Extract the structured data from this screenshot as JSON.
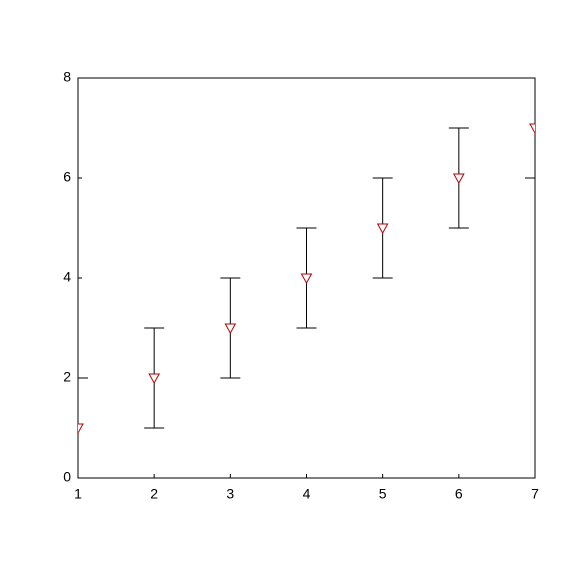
{
  "chart_data": {
    "type": "scatter",
    "x": [
      1,
      2,
      3,
      4,
      5,
      6,
      7
    ],
    "series": [
      {
        "values": [
          1,
          2,
          3,
          4,
          5,
          6,
          7
        ],
        "errors": [
          1,
          1,
          1,
          1,
          1,
          1,
          1
        ],
        "color": "#b00000",
        "error_color": "#000000",
        "marker": "triangle-down"
      }
    ],
    "xlim": [
      1,
      7
    ],
    "ylim": [
      0,
      8
    ],
    "xticks": [
      1,
      2,
      3,
      4,
      5,
      6,
      7
    ],
    "yticks": [
      0,
      2,
      4,
      6,
      8
    ],
    "grid": false
  }
}
